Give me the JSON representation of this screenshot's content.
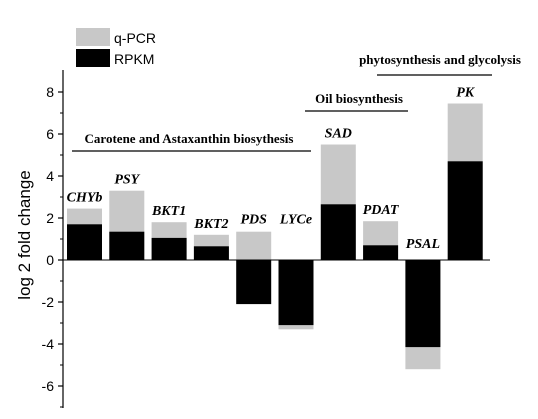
{
  "chart_data": {
    "type": "bar",
    "ylabel": "log 2 fold change",
    "ylim": [
      -6.6,
      8.8
    ],
    "yticks": [
      -6,
      -4,
      -2,
      0,
      2,
      4,
      6,
      8
    ],
    "legend_position": "top-left",
    "series": [
      {
        "name": "q-PCR",
        "color": "#c8c8c8",
        "values": [
          2.45,
          3.3,
          1.8,
          1.2,
          1.35,
          -3.3,
          5.5,
          1.85,
          -5.2,
          7.45
        ]
      },
      {
        "name": "RPKM",
        "color": "#000000",
        "values": [
          1.7,
          1.35,
          1.05,
          0.65,
          -2.1,
          -3.1,
          2.65,
          0.7,
          -4.15,
          4.7
        ]
      }
    ],
    "categories": [
      "CHYb",
      "PSY",
      "BKT1",
      "BKT2",
      "PDS",
      "LYCe",
      "SAD",
      "PDAT",
      "PSAL",
      "PK"
    ],
    "groups": [
      {
        "label": "Carotene and Astaxanthin biosythesis",
        "from": 0,
        "to": 5
      },
      {
        "label": "Oil biosynthesis",
        "from": 6,
        "to": 7
      },
      {
        "label": "phytosynthesis and glycolysis",
        "from": 8,
        "to": 9
      }
    ]
  }
}
